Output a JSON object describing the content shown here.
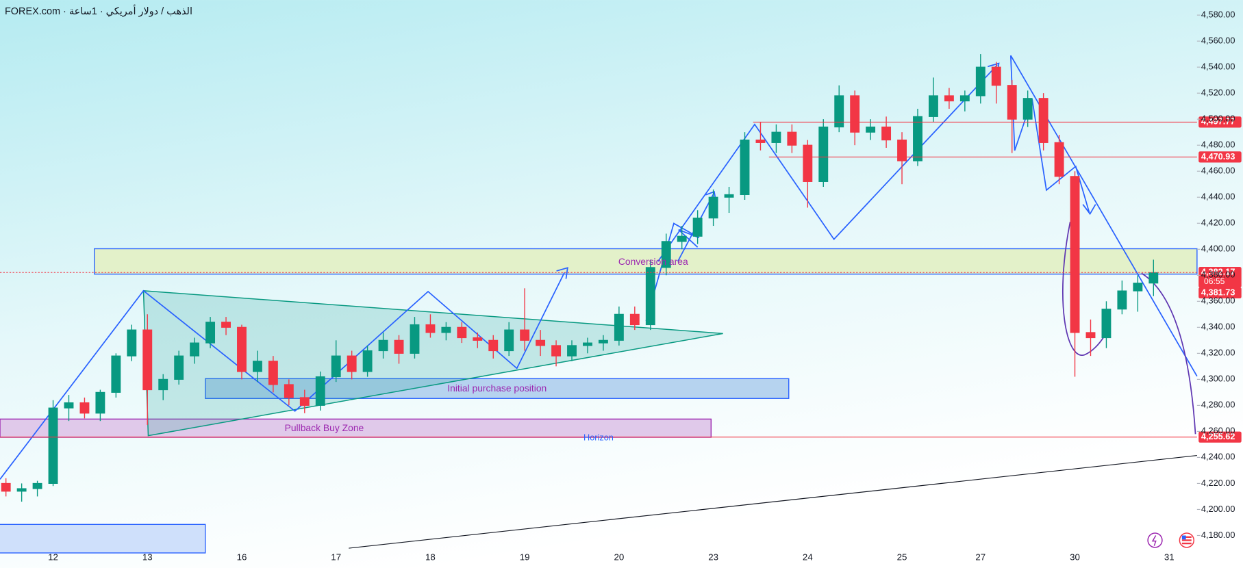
{
  "chart_data": {
    "type": "candlestick",
    "title": "FOREX.com · الذهب / دولار أمريكي · 1ساعة",
    "categories": [
      null,
      null,
      null,
      "12",
      null,
      null,
      null,
      null,
      null,
      "13",
      null,
      null,
      null,
      null,
      null,
      "16",
      null,
      null,
      null,
      null,
      null,
      "17",
      null,
      null,
      null,
      null,
      null,
      "18",
      null,
      null,
      null,
      null,
      null,
      "19",
      null,
      null,
      null,
      null,
      null,
      "20",
      null,
      null,
      null,
      null,
      null,
      "23",
      null,
      null,
      null,
      null,
      null,
      "24",
      null,
      null,
      null,
      null,
      null,
      "25",
      null,
      null,
      null,
      null,
      "27",
      null,
      null,
      null,
      null,
      null,
      "30",
      null,
      null,
      null,
      null,
      null,
      "31"
    ],
    "open": [
      4220,
      4214,
      4216,
      4220,
      4278,
      4282,
      4274,
      4290,
      4318,
      4338,
      4292,
      4300,
      4318,
      4328,
      4344,
      4340,
      4306,
      4314,
      4296,
      4286,
      4280,
      4302,
      4318,
      4306,
      4322,
      4330,
      4320,
      4342,
      4336,
      4340,
      4332,
      4330,
      4322,
      4338,
      4330,
      4326,
      4318,
      4326,
      4328,
      4330,
      4350,
      4342,
      4386,
      4406,
      4410,
      4424,
      4440,
      4442,
      4484,
      4482,
      4490,
      4480,
      4452,
      4494,
      4518,
      4490,
      4494,
      4484,
      4468,
      4502,
      4518,
      4514,
      4518,
      4540,
      4526,
      4500,
      4516,
      4482,
      4456,
      4336,
      4332,
      4354,
      4368,
      4374,
      null
    ],
    "high": [
      4224,
      4220,
      4222,
      4284,
      4288,
      4286,
      4292,
      4320,
      4342,
      4350,
      4304,
      4322,
      4332,
      4348,
      4348,
      4342,
      4322,
      4318,
      4300,
      4292,
      4306,
      4330,
      4322,
      4326,
      4336,
      4334,
      4348,
      4350,
      4344,
      4344,
      4336,
      4334,
      4344,
      4370,
      4338,
      4330,
      4330,
      4332,
      4334,
      4356,
      4356,
      4392,
      4412,
      4418,
      4430,
      4446,
      4448,
      4490,
      4498,
      4496,
      4496,
      4484,
      4500,
      4526,
      4522,
      4500,
      4502,
      4490,
      4508,
      4532,
      4524,
      4522,
      4550,
      4544,
      4530,
      4522,
      4520,
      4488,
      4460,
      4346,
      4360,
      4376,
      4380,
      4392,
      null
    ],
    "low": [
      4210,
      4206,
      4210,
      4218,
      4268,
      4270,
      4268,
      4286,
      4314,
      4265,
      4284,
      4296,
      4312,
      4324,
      4334,
      4300,
      4298,
      4290,
      4280,
      4274,
      4276,
      4298,
      4300,
      4302,
      4316,
      4312,
      4316,
      4332,
      4330,
      4328,
      4324,
      4316,
      4318,
      4322,
      4318,
      4310,
      4314,
      4320,
      4322,
      4326,
      4338,
      4338,
      4380,
      4400,
      4404,
      4418,
      4428,
      4438,
      4476,
      4474,
      4474,
      4432,
      4448,
      4490,
      4480,
      4484,
      4478,
      4450,
      4464,
      4498,
      4508,
      4506,
      4512,
      4512,
      4474,
      4494,
      4476,
      4450,
      4302,
      4318,
      4324,
      4350,
      4352,
      4364,
      null
    ],
    "close": [
      4214,
      4216,
      4220,
      4278,
      4282,
      4274,
      4290,
      4318,
      4338,
      4292,
      4300,
      4318,
      4328,
      4344,
      4340,
      4306,
      4314,
      4296,
      4286,
      4280,
      4302,
      4318,
      4306,
      4322,
      4330,
      4320,
      4342,
      4336,
      4340,
      4332,
      4330,
      4322,
      4338,
      4330,
      4326,
      4318,
      4326,
      4328,
      4330,
      4350,
      4342,
      4386,
      4406,
      4410,
      4424,
      4440,
      4442,
      4484,
      4482,
      4490,
      4480,
      4452,
      4494,
      4518,
      4490,
      4494,
      4484,
      4468,
      4502,
      4518,
      4514,
      4518,
      4540,
      4526,
      4500,
      4516,
      4482,
      4456,
      4336,
      4332,
      4354,
      4368,
      4374,
      4382,
      null
    ],
    "up_color": "#089981",
    "down_color": "#f23645",
    "ylim": [
      4168.4,
      4591.6
    ],
    "yticks": [
      {
        "value": 4180,
        "label": "4,180.00"
      },
      {
        "value": 4200,
        "label": "4,200.00"
      },
      {
        "value": 4220,
        "label": "4,220.00"
      },
      {
        "value": 4240,
        "label": "4,240.00"
      },
      {
        "value": 4260,
        "label": "4,260.00"
      },
      {
        "value": 4280,
        "label": "4,280.00"
      },
      {
        "value": 4300,
        "label": "4,300.00"
      },
      {
        "value": 4320,
        "label": "4,320.00"
      },
      {
        "value": 4340,
        "label": "4,340.00"
      },
      {
        "value": 4360,
        "label": "4,360.00"
      },
      {
        "value": 4380,
        "label": "4,380.00"
      },
      {
        "value": 4400,
        "label": "4,400.00"
      },
      {
        "value": 4420,
        "label": "4,420.00"
      },
      {
        "value": 4440,
        "label": "4,440.00"
      },
      {
        "value": 4460,
        "label": "4,460.00"
      },
      {
        "value": 4480,
        "label": "4,480.00"
      },
      {
        "value": 4500,
        "label": "4,500.00"
      },
      {
        "value": 4520,
        "label": "4,520.00"
      },
      {
        "value": 4540,
        "label": "4,540.00"
      },
      {
        "value": 4560,
        "label": "4,560.00"
      },
      {
        "value": 4580,
        "label": "4,580.00"
      }
    ],
    "grid": false,
    "level_color": "#f23645",
    "levels": [
      {
        "value": 4497.77,
        "label": "4,497.77"
      },
      {
        "value": 4470.93,
        "label": "4,470.93"
      },
      {
        "value": 4382.17,
        "label": "4,382.17",
        "countdown": "06:55"
      },
      {
        "value": 4381.73,
        "label": "4,381.73"
      },
      {
        "value": 4255.62,
        "label": "4,255.62"
      }
    ],
    "annotations": {
      "conversion": "Conversion area",
      "initial": "Initial purchase position",
      "pullback": "Pullback Buy Zone",
      "horizon": "Horizon"
    }
  }
}
